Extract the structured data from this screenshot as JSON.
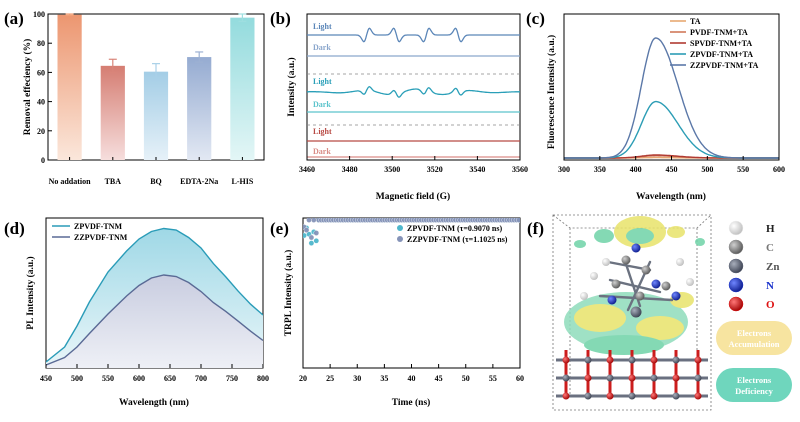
{
  "chart_data": [
    {
      "panel_label": "(a)",
      "type": "bar",
      "ylabel": "Removal effeciency (%)",
      "ylim": [
        0,
        100
      ],
      "yticks": [
        "0",
        "20",
        "40",
        "60",
        "80",
        "100"
      ],
      "categories": [
        "No addation",
        "TBA",
        "BQ",
        "EDTA-2Na",
        "L-HIS"
      ],
      "values": [
        99.5,
        64.5,
        60.5,
        70.5,
        97.5
      ],
      "errors": [
        0.5,
        4.5,
        5.5,
        3.5,
        2.5
      ],
      "colors": [
        "#f0a078",
        "#d9857a",
        "#a9d0e8",
        "#9db1d3",
        "#9fdfe0"
      ]
    },
    {
      "panel_label": "(b)",
      "type": "line",
      "xlabel": "Magnetic field (G)",
      "ylabel": "Intensity (a.u.)",
      "xlim": [
        3460,
        3560
      ],
      "xticks": [
        "3460",
        "3480",
        "3500",
        "3520",
        "3540",
        "3560"
      ],
      "series": [
        {
          "name": "Light",
          "color": "#5b86b8",
          "peaks": [
            3488,
            3502,
            3516,
            3531
          ]
        },
        {
          "name": "Dark",
          "color": "#8aa6cc"
        },
        {
          "name": "Light",
          "color": "#2a9fb8",
          "peaks": [
            3488,
            3502,
            3516,
            3531
          ]
        },
        {
          "name": "Dark",
          "color": "#5cc4cc"
        },
        {
          "name": "Light",
          "color": "#b84a44"
        },
        {
          "name": "Dark",
          "color": "#d98c86"
        }
      ]
    },
    {
      "panel_label": "(c)",
      "type": "line",
      "xlabel": "Wavelength (nm)",
      "ylabel": "Fluorescence Intensity (a.u.)",
      "xlim": [
        300,
        600
      ],
      "xticks": [
        "300",
        "350",
        "400",
        "450",
        "500",
        "550",
        "600"
      ],
      "peak_x": 428,
      "series": [
        {
          "name": "TA",
          "color": "#e8a872",
          "peak": 0.3
        },
        {
          "name": "PVDF-TNM+TA",
          "color": "#d07a5a",
          "peak": 1.8
        },
        {
          "name": "SPVDF-TNM+TA",
          "color": "#b03a32",
          "peak": 2.5
        },
        {
          "name": "ZPVDF-TNM+TA",
          "color": "#2c9db5",
          "peak": 47
        },
        {
          "name": "ZZPVDF-TNM+TA",
          "color": "#5b78a8",
          "peak": 100
        }
      ]
    },
    {
      "panel_label": "(d)",
      "type": "area",
      "xlabel": "Wavelength (nm)",
      "ylabel": "PL Intensity (a.u.)",
      "xlim": [
        450,
        800
      ],
      "xticks": [
        "450",
        "500",
        "550",
        "600",
        "650",
        "700",
        "750",
        "800"
      ],
      "series": [
        {
          "name": "ZPVDF-TNM",
          "color": "#2a9cb8",
          "x": [
            450,
            480,
            500,
            520,
            550,
            580,
            600,
            620,
            640,
            660,
            680,
            700,
            720,
            740,
            760,
            780,
            800
          ],
          "values": [
            4,
            14,
            28,
            44,
            64,
            78,
            86,
            91,
            93,
            92,
            87,
            80,
            70,
            60,
            50,
            42,
            36
          ]
        },
        {
          "name": "ZZPVDF-TNM",
          "color": "#5a6a95",
          "x": [
            450,
            480,
            500,
            520,
            550,
            580,
            600,
            620,
            640,
            660,
            680,
            700,
            720,
            740,
            760,
            780,
            800
          ],
          "values": [
            2,
            7,
            14,
            23,
            36,
            48,
            55,
            60,
            62,
            61,
            57,
            51,
            44,
            37,
            30,
            24,
            19
          ]
        }
      ]
    },
    {
      "panel_label": "(e)",
      "type": "scatter",
      "xlabel": "Time (ns)",
      "ylabel": "TRPL Intensity (a.u.)",
      "xlim": [
        20,
        60
      ],
      "xticks": [
        "20",
        "25",
        "30",
        "35",
        "40",
        "45",
        "50",
        "55",
        "60"
      ],
      "series": [
        {
          "name": "ZPVDF-TNM (τ=0.9070 ns)",
          "color": "#4fb7cc",
          "tau": 0.907
        },
        {
          "name": "ZZPVDF-TNM (τ=1.1025 ns)",
          "color": "#8593b8",
          "tau": 1.1025
        }
      ]
    }
  ],
  "panel_f": {
    "panel_label": "(f)",
    "atoms": [
      {
        "symbol": "H",
        "color": "#f2f2f2"
      },
      {
        "symbol": "C",
        "color": "#8c8c8c"
      },
      {
        "symbol": "Zn",
        "color": "#5f6677"
      },
      {
        "symbol": "N",
        "color": "#1a33cc"
      },
      {
        "symbol": "O",
        "color": "#dd1111"
      }
    ],
    "atom_label_colors": [
      "#222222",
      "#777777",
      "#555555",
      "#1a33cc",
      "#dd1111"
    ],
    "tags": [
      {
        "text": "Electrons Accumulation",
        "line1": "Electrons",
        "line2": "Accumulation",
        "color": "#f7e4a0"
      },
      {
        "text": "Electrons Deficiency",
        "line1": "Electrons",
        "line2": "Deficiency",
        "color": "#6fd6bd"
      }
    ]
  }
}
